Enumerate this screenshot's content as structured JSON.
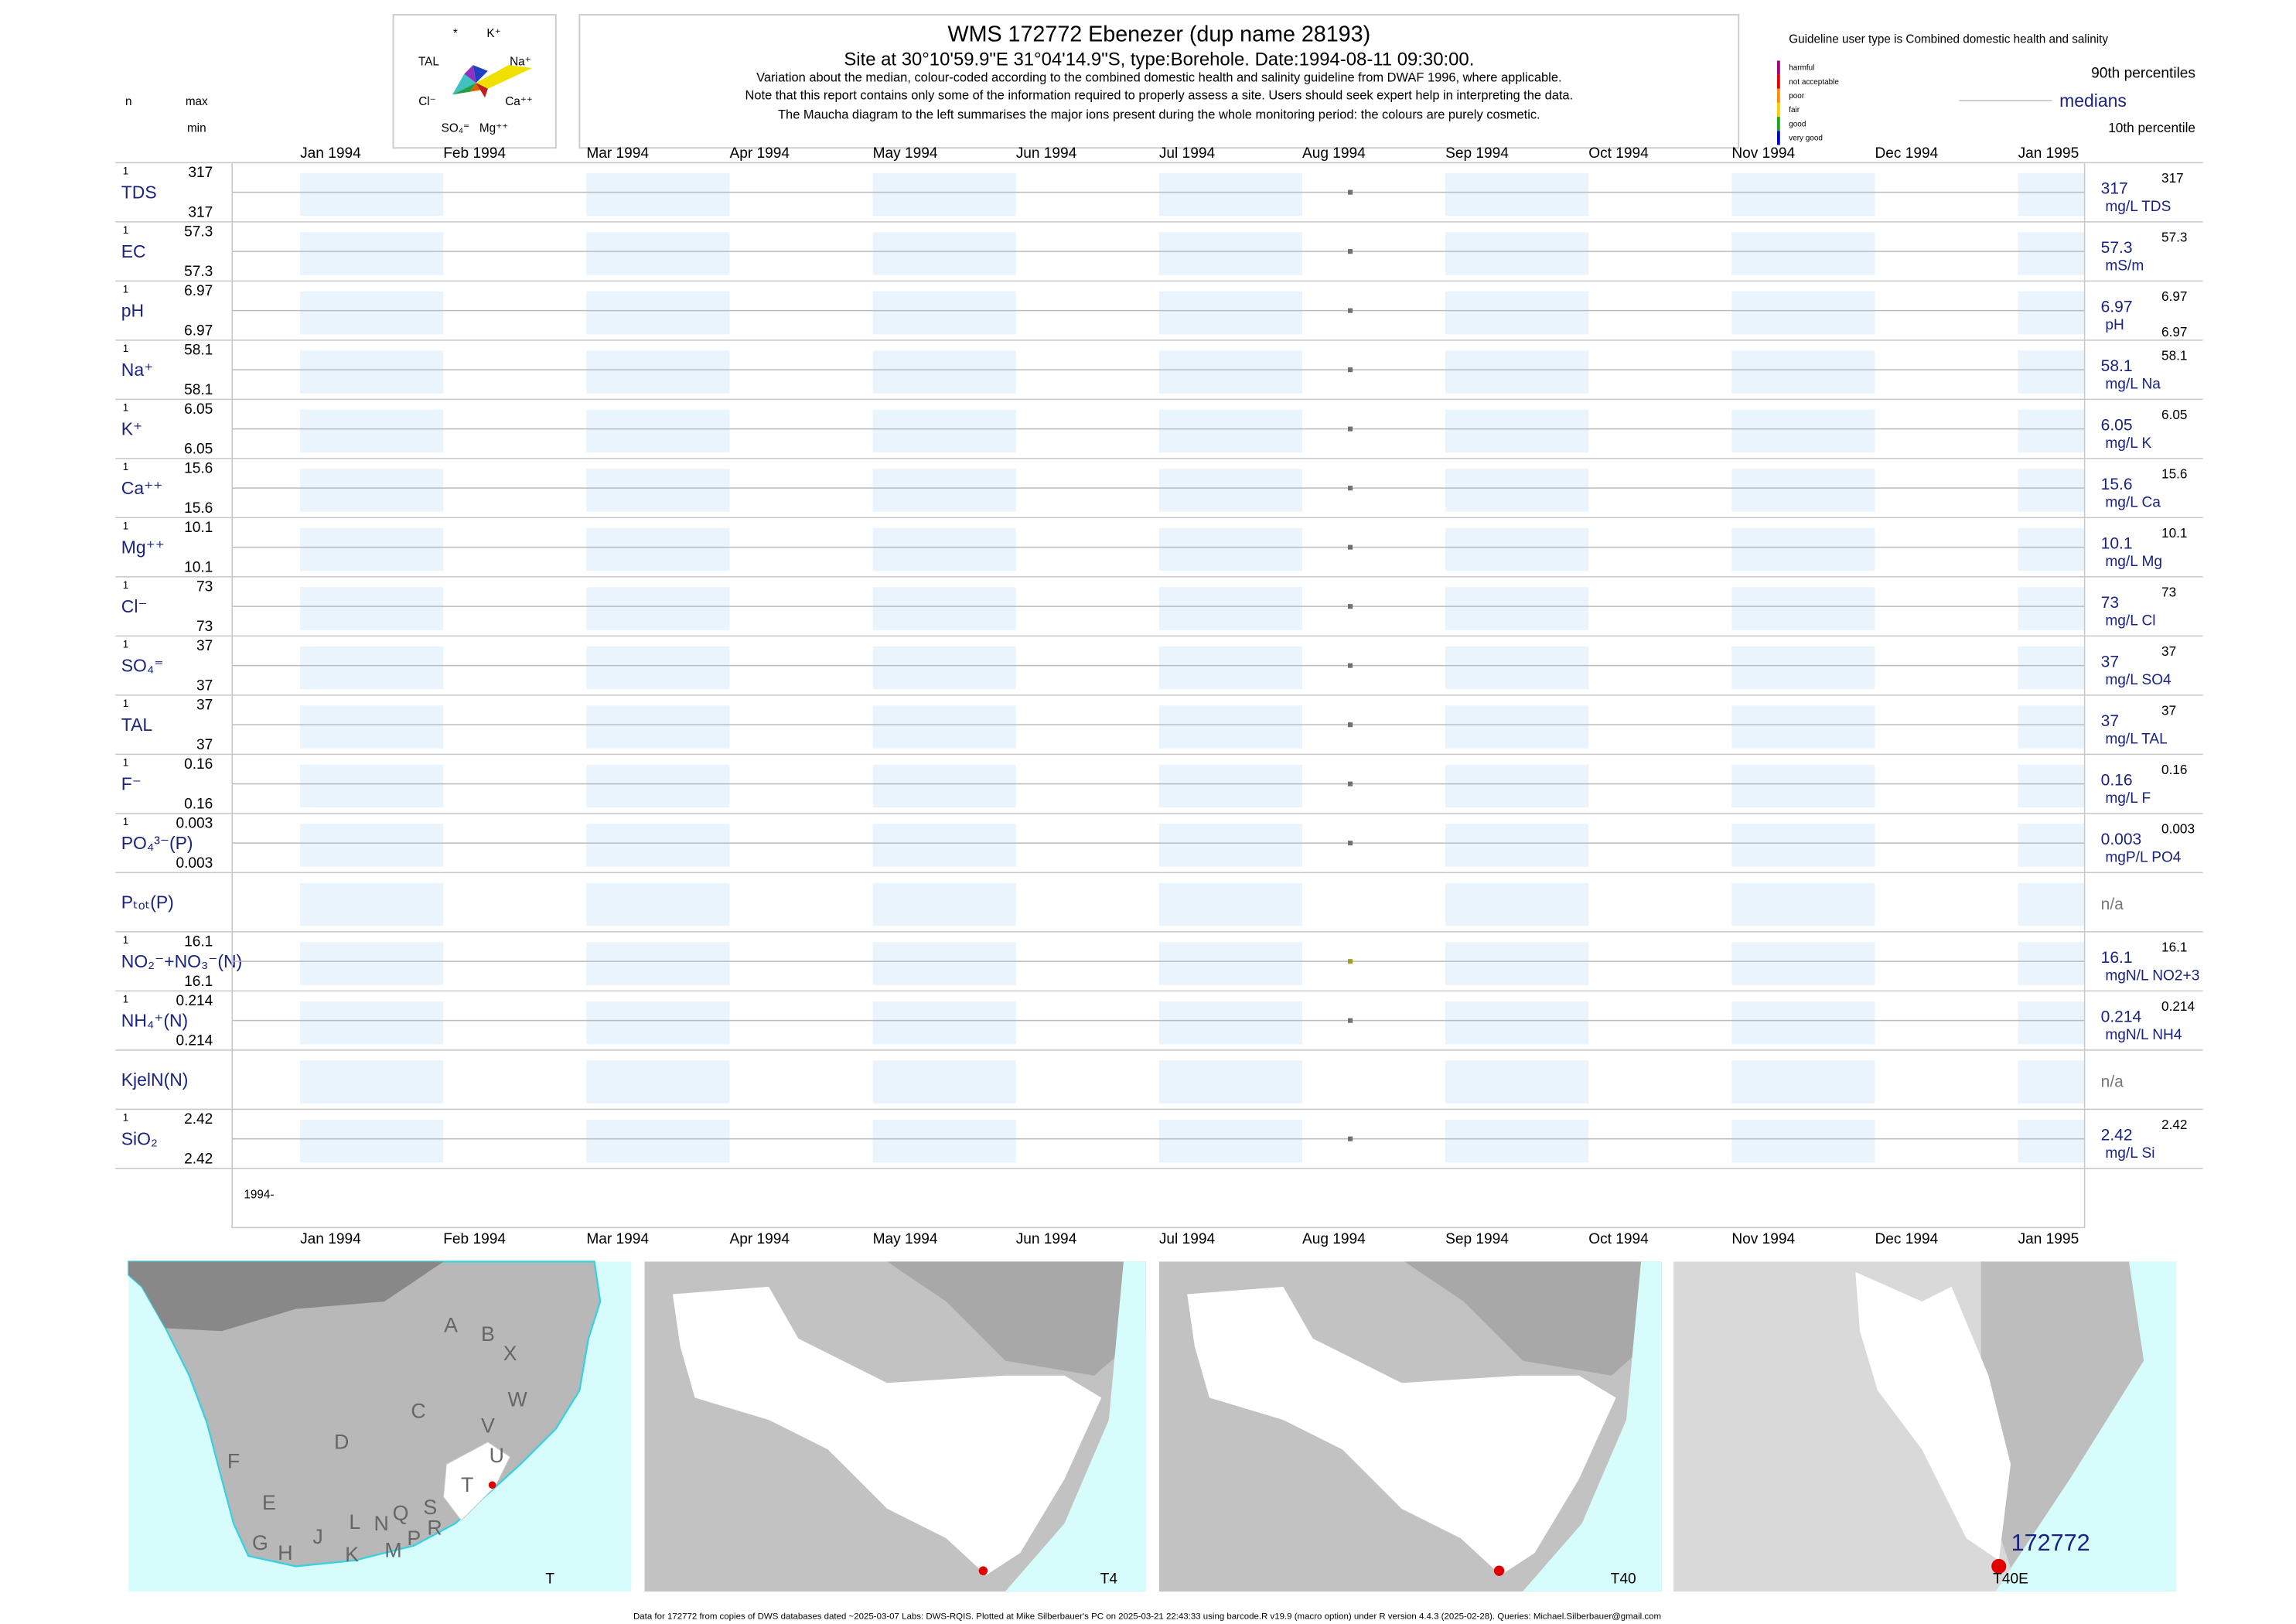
{
  "maucha": {
    "labels": [
      "*",
      "K⁺",
      "TAL",
      "Na⁺",
      "Cl⁻",
      "Ca⁺⁺",
      "SO₄⁼",
      "Mg⁺⁺"
    ]
  },
  "header": {
    "title": "WMS 172772  Ebenezer (dup name 28193)",
    "site_line": {
      "prefix": "Site at 30°10'59.9\"E 31°04'14.9\"S, type:Borehole. Date:",
      "date": "1994-08-11 09:30:00",
      "suffix": "."
    },
    "notes": [
      "Variation about the median,  colour-coded according to the combined domestic health and salinity guideline from DWAF 1996, where applicable.",
      "Note that this report contains only some of the information required to properly assess a site. Users should seek expert help in interpreting the data.",
      "The Maucha diagram to the left summarises the major ions present during the whole monitoring period: the colours are purely cosmetic."
    ]
  },
  "legend": {
    "guideline": "Guideline user type is Combined domestic health and salinity",
    "quality_classes": [
      {
        "label": "harmful",
        "color": "#a0007a"
      },
      {
        "label": "not acceptable",
        "color": "#e00000"
      },
      {
        "label": "poor",
        "color": "#ff8c00"
      },
      {
        "label": "fair",
        "color": "#f0d000"
      },
      {
        "label": "good",
        "color": "#20a020"
      },
      {
        "label": "very good",
        "color": "#0000c0"
      }
    ],
    "p90": "90th percentiles",
    "median": "medians",
    "p10": "10th percentile"
  },
  "columns": {
    "n": "n",
    "max": "max",
    "min": "min"
  },
  "months": [
    "Jan 1994",
    "Feb 1994",
    "Mar 1994",
    "Apr 1994",
    "May 1994",
    "Jun 1994",
    "Jul 1994",
    "Aug 1994",
    "Sep 1994",
    "Oct 1994",
    "Nov 1994",
    "Dec 1994",
    "Jan 1995"
  ],
  "year_label": "1994-",
  "rows": [
    {
      "name": "TDS",
      "n": 1,
      "max": 317,
      "min": 317,
      "median": 317,
      "unit": "mg/L TDS",
      "p90": 317,
      "color": "#707070"
    },
    {
      "name": "EC",
      "n": 1,
      "max": 57.3,
      "min": 57.3,
      "median": 57.3,
      "unit": "mS/m",
      "p90": 57.3,
      "color": "#707070"
    },
    {
      "name": "pH",
      "n": 1,
      "max": 6.97,
      "min": 6.97,
      "median": 6.97,
      "unit": "pH",
      "p90": 6.97,
      "p10": 6.97,
      "color": "#707070"
    },
    {
      "name": "Na⁺",
      "n": 1,
      "max": 58.1,
      "min": 58.1,
      "median": 58.1,
      "unit": "mg/L Na",
      "p90": 58.1,
      "color": "#707070"
    },
    {
      "name": "K⁺",
      "n": 1,
      "max": 6.05,
      "min": 6.05,
      "median": 6.05,
      "unit": "mg/L K",
      "p90": 6.05,
      "color": "#707070"
    },
    {
      "name": "Ca⁺⁺",
      "n": 1,
      "max": 15.6,
      "min": 15.6,
      "median": 15.6,
      "unit": "mg/L Ca",
      "p90": 15.6,
      "color": "#707070"
    },
    {
      "name": "Mg⁺⁺",
      "n": 1,
      "max": 10.1,
      "min": 10.1,
      "median": 10.1,
      "unit": "mg/L Mg",
      "p90": 10.1,
      "color": "#707070"
    },
    {
      "name": "Cl⁻",
      "n": 1,
      "max": 73,
      "min": 73,
      "median": 73,
      "unit": "mg/L Cl",
      "p90": 73,
      "color": "#707070"
    },
    {
      "name": "SO₄⁼",
      "n": 1,
      "max": 37,
      "min": 37,
      "median": 37,
      "unit": "mg/L SO4",
      "p90": 37,
      "color": "#707070"
    },
    {
      "name": "TAL",
      "n": 1,
      "max": 37,
      "min": 37,
      "median": 37,
      "unit": "mg/L TAL",
      "p90": 37,
      "color": "#707070"
    },
    {
      "name": "F⁻",
      "n": 1,
      "max": 0.16,
      "min": 0.16,
      "median": 0.16,
      "unit": "mg/L F",
      "p90": 0.16,
      "color": "#707070"
    },
    {
      "name": "PO₄³⁻(P)",
      "n": 1,
      "max": 0.003,
      "min": 0.003,
      "median": 0.003,
      "unit": "mgP/L PO4",
      "p90": 0.003,
      "color": "#707070"
    },
    {
      "name": "Pₜₒₜ(P)",
      "median": "n/a"
    },
    {
      "name": "NO₂⁻+NO₃⁻(N)",
      "n": 1,
      "max": 16.1,
      "min": 16.1,
      "median": 16.1,
      "unit": "mgN/L NO2+3",
      "p90": 16.1,
      "color": "#a0a020"
    },
    {
      "name": "NH₄⁺(N)",
      "n": 1,
      "max": 0.214,
      "min": 0.214,
      "median": 0.214,
      "unit": "mgN/L NH4",
      "p90": 0.214,
      "color": "#707070"
    },
    {
      "name": "KjelN(N)",
      "median": "n/a"
    },
    {
      "name": "SiO₂",
      "n": 1,
      "max": 2.42,
      "min": 2.42,
      "median": 2.42,
      "unit": "mg/L Si",
      "p90": 2.42,
      "color": "#707070"
    }
  ],
  "maps": [
    {
      "caption": "T",
      "letters": [
        "A",
        "B",
        "X",
        "W",
        "C",
        "V",
        "D",
        "U",
        "T",
        "F",
        "E",
        "S",
        "Q",
        "N",
        "L",
        "R",
        "P",
        "J",
        "G",
        "H",
        "M",
        "K"
      ]
    },
    {
      "caption": "T4"
    },
    {
      "caption": "T40"
    },
    {
      "caption": "T40E",
      "site": "172772"
    }
  ],
  "footer": "Data for 172772 from copies of DWS databases dated ~2025-03-07 Labs: DWS-RQIS. Plotted at Mike Silberbauer's PC on 2025-03-21 22:43:33 using barcode.R v19.9 (macro option) under R version 4.4.3 (2025-02-28). Queries: Michael.Silberbauer@gmail.com"
}
